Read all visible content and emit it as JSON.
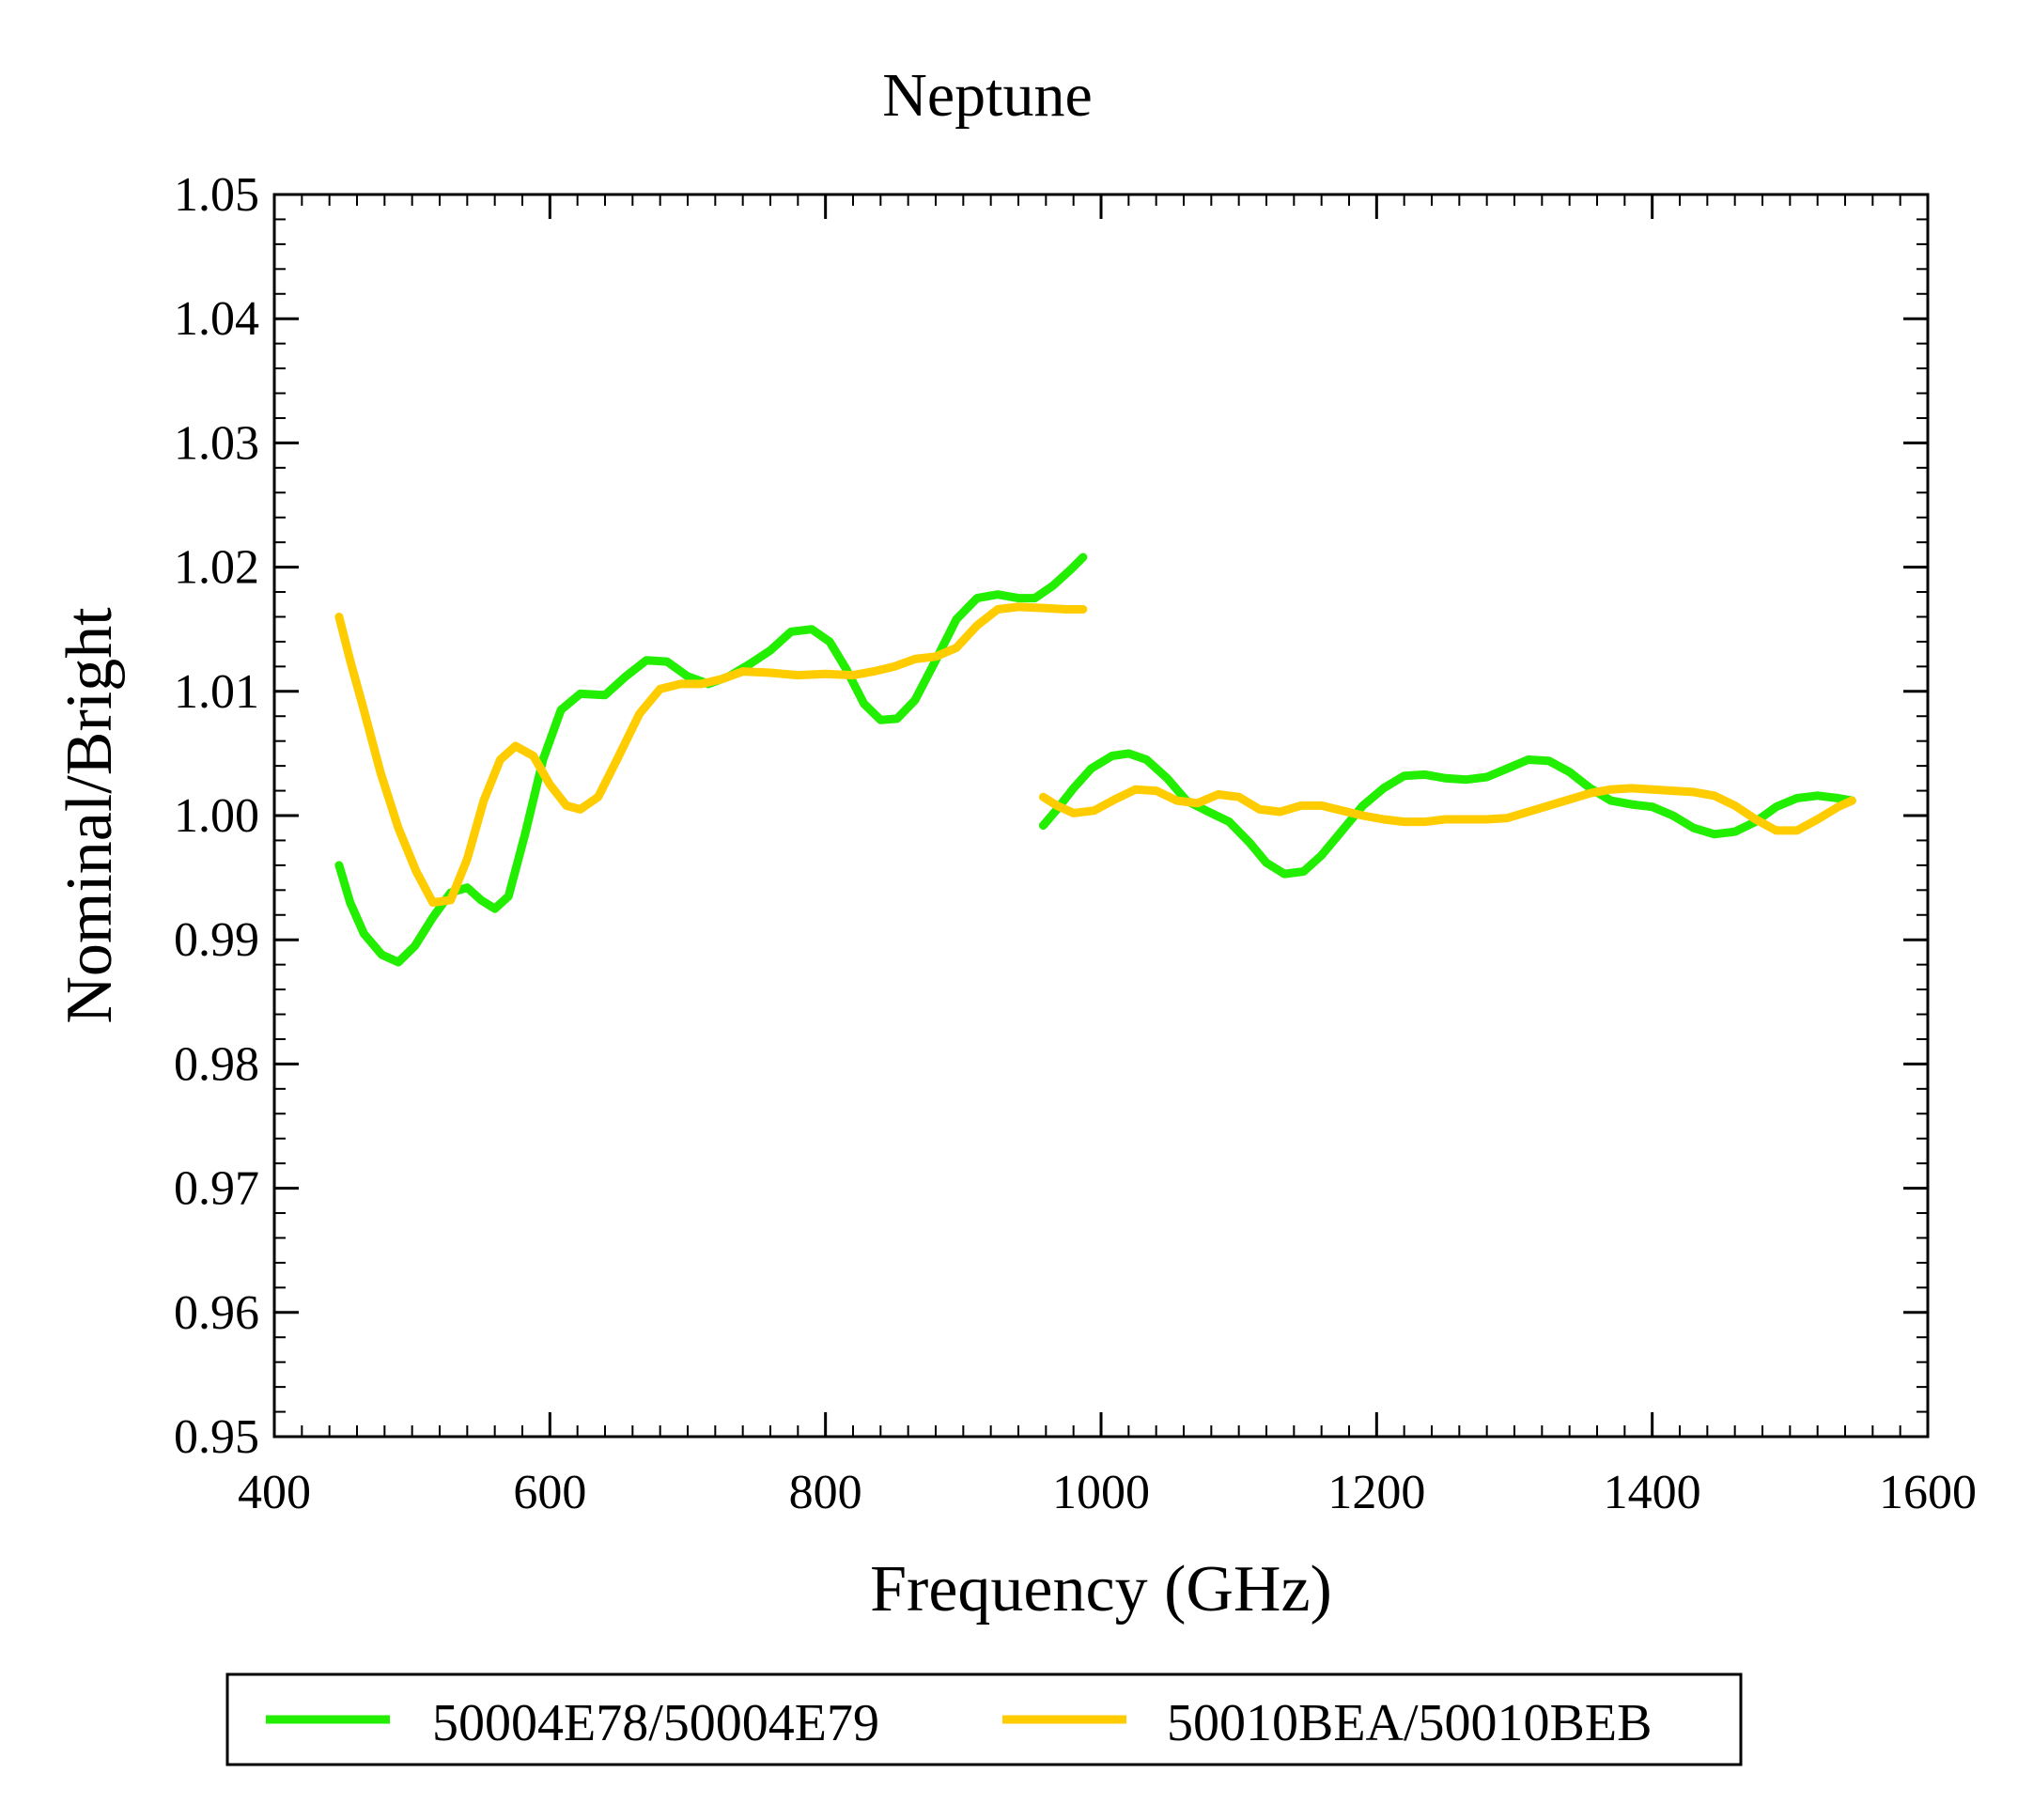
{
  "chart_data": {
    "type": "line",
    "title": "Neptune",
    "xlabel": "Frequency (GHz)",
    "ylabel": "Nominal/Bright",
    "xlim": [
      400,
      1600
    ],
    "ylim": [
      0.95,
      1.05
    ],
    "x_ticks": [
      400,
      600,
      800,
      1000,
      1200,
      1400,
      1600
    ],
    "x_tick_labels": [
      "400",
      "600",
      "800",
      "1000",
      "1200",
      "1400",
      "1600"
    ],
    "y_ticks": [
      0.95,
      0.96,
      0.97,
      0.98,
      0.99,
      1.0,
      1.01,
      1.02,
      1.03,
      1.04,
      1.05
    ],
    "y_tick_labels": [
      "0.95",
      "0.96",
      "0.97",
      "0.98",
      "0.99",
      "1.00",
      "1.01",
      "1.02",
      "1.03",
      "1.04",
      "1.05"
    ],
    "grid": false,
    "legend_position": "bottom",
    "series": [
      {
        "name": "50004E78/50004E79",
        "color": "#22ee00",
        "segments": [
          [
            [
              447,
              0.996
            ],
            [
              455,
              0.993
            ],
            [
              465,
              0.9905
            ],
            [
              478,
              0.9888
            ],
            [
              490,
              0.9882
            ],
            [
              502,
              0.9895
            ],
            [
              515,
              0.9918
            ],
            [
              528,
              0.9938
            ],
            [
              540,
              0.9942
            ],
            [
              550,
              0.9932
            ],
            [
              560,
              0.9925
            ],
            [
              570,
              0.9935
            ],
            [
              582,
              0.9985
            ],
            [
              595,
              1.0045
            ],
            [
              608,
              1.0085
            ],
            [
              622,
              1.0098
            ],
            [
              640,
              1.0097
            ],
            [
              655,
              1.0112
            ],
            [
              670,
              1.0125
            ],
            [
              685,
              1.0124
            ],
            [
              700,
              1.0112
            ],
            [
              715,
              1.0106
            ],
            [
              730,
              1.0112
            ],
            [
              745,
              1.0122
            ],
            [
              760,
              1.0133
            ],
            [
              775,
              1.0148
            ],
            [
              790,
              1.015
            ],
            [
              803,
              1.014
            ],
            [
              815,
              1.0118
            ],
            [
              828,
              1.009
            ],
            [
              840,
              1.0077
            ],
            [
              852,
              1.0078
            ],
            [
              865,
              1.0093
            ],
            [
              880,
              1.0125
            ],
            [
              895,
              1.0158
            ],
            [
              910,
              1.0175
            ],
            [
              925,
              1.0178
            ],
            [
              940,
              1.0175
            ],
            [
              952,
              1.0175
            ],
            [
              965,
              1.0185
            ],
            [
              978,
              1.0198
            ],
            [
              987,
              1.0208
            ]
          ],
          [
            [
              958,
              0.9992
            ],
            [
              968,
              1.0005
            ],
            [
              980,
              1.0022
            ],
            [
              993,
              1.0038
            ],
            [
              1008,
              1.0048
            ],
            [
              1020,
              1.005
            ],
            [
              1033,
              1.0045
            ],
            [
              1048,
              1.003
            ],
            [
              1062,
              1.0012
            ],
            [
              1078,
              1.0003
            ],
            [
              1093,
              0.9995
            ],
            [
              1108,
              0.9978
            ],
            [
              1120,
              0.9962
            ],
            [
              1133,
              0.9953
            ],
            [
              1147,
              0.9955
            ],
            [
              1160,
              0.9968
            ],
            [
              1175,
              0.9988
            ],
            [
              1190,
              1.0008
            ],
            [
              1205,
              1.0022
            ],
            [
              1220,
              1.0032
            ],
            [
              1235,
              1.0033
            ],
            [
              1250,
              1.003
            ],
            [
              1265,
              1.0029
            ],
            [
              1280,
              1.0031
            ],
            [
              1295,
              1.0038
            ],
            [
              1310,
              1.0045
            ],
            [
              1325,
              1.0044
            ],
            [
              1340,
              1.0035
            ],
            [
              1355,
              1.0022
            ],
            [
              1370,
              1.0012
            ],
            [
              1385,
              1.0009
            ],
            [
              1400,
              1.0007
            ],
            [
              1415,
              1.0
            ],
            [
              1430,
              0.999
            ],
            [
              1445,
              0.9985
            ],
            [
              1460,
              0.9987
            ],
            [
              1475,
              0.9995
            ],
            [
              1490,
              1.0007
            ],
            [
              1505,
              1.0014
            ],
            [
              1520,
              1.0016
            ],
            [
              1535,
              1.0014
            ],
            [
              1545,
              1.0012
            ]
          ]
        ]
      },
      {
        "name": "50010BEA/50010BEB",
        "color": "#ffcc00",
        "segments": [
          [
            [
              447,
              1.016
            ],
            [
              455,
              1.0125
            ],
            [
              465,
              1.0085
            ],
            [
              477,
              1.0035
            ],
            [
              490,
              0.999
            ],
            [
              503,
              0.9955
            ],
            [
              515,
              0.993
            ],
            [
              528,
              0.9932
            ],
            [
              540,
              0.9965
            ],
            [
              552,
              1.0012
            ],
            [
              564,
              1.0045
            ],
            [
              575,
              1.0056
            ],
            [
              588,
              1.0048
            ],
            [
              600,
              1.0025
            ],
            [
              612,
              1.0008
            ],
            [
              622,
              1.0005
            ],
            [
              635,
              1.0015
            ],
            [
              650,
              1.0048
            ],
            [
              665,
              1.0082
            ],
            [
              680,
              1.0102
            ],
            [
              695,
              1.0106
            ],
            [
              710,
              1.0106
            ],
            [
              725,
              1.011
            ],
            [
              740,
              1.0116
            ],
            [
              760,
              1.0115
            ],
            [
              780,
              1.0113
            ],
            [
              800,
              1.0114
            ],
            [
              820,
              1.0113
            ],
            [
              835,
              1.0116
            ],
            [
              850,
              1.012
            ],
            [
              865,
              1.0126
            ],
            [
              880,
              1.0128
            ],
            [
              895,
              1.0135
            ],
            [
              910,
              1.0153
            ],
            [
              925,
              1.0166
            ],
            [
              940,
              1.0168
            ],
            [
              960,
              1.0167
            ],
            [
              975,
              1.0166
            ],
            [
              987,
              1.0166
            ]
          ],
          [
            [
              958,
              1.0015
            ],
            [
              968,
              1.0008
            ],
            [
              980,
              1.0002
            ],
            [
              995,
              1.0004
            ],
            [
              1010,
              1.0013
            ],
            [
              1025,
              1.0021
            ],
            [
              1040,
              1.002
            ],
            [
              1055,
              1.0012
            ],
            [
              1070,
              1.001
            ],
            [
              1085,
              1.0017
            ],
            [
              1100,
              1.0015
            ],
            [
              1115,
              1.0005
            ],
            [
              1130,
              1.0003
            ],
            [
              1145,
              1.0008
            ],
            [
              1160,
              1.0008
            ],
            [
              1175,
              1.0004
            ],
            [
              1190,
              1.0
            ],
            [
              1205,
              0.9997
            ],
            [
              1220,
              0.9995
            ],
            [
              1235,
              0.9995
            ],
            [
              1250,
              0.9997
            ],
            [
              1265,
              0.9997
            ],
            [
              1280,
              0.9997
            ],
            [
              1295,
              0.9998
            ],
            [
              1310,
              1.0003
            ],
            [
              1325,
              1.0008
            ],
            [
              1340,
              1.0013
            ],
            [
              1355,
              1.0018
            ],
            [
              1370,
              1.0021
            ],
            [
              1385,
              1.0022
            ],
            [
              1400,
              1.0021
            ],
            [
              1415,
              1.002
            ],
            [
              1430,
              1.0019
            ],
            [
              1445,
              1.0016
            ],
            [
              1460,
              1.0008
            ],
            [
              1475,
              0.9997
            ],
            [
              1490,
              0.9988
            ],
            [
              1505,
              0.9988
            ],
            [
              1520,
              0.9997
            ],
            [
              1535,
              1.0007
            ],
            [
              1545,
              1.0012
            ]
          ]
        ]
      }
    ]
  }
}
